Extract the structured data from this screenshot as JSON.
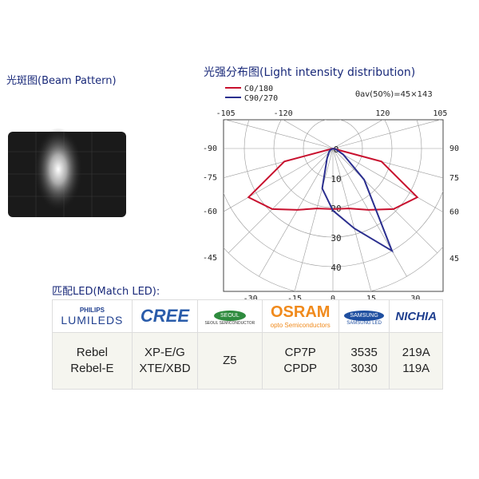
{
  "beam_pattern": {
    "title": "光斑图(Beam Pattern)"
  },
  "chart_data": {
    "type": "polar",
    "title": "光强分布图(Light intensity distribution)",
    "annotation": "θav(50%)=45×143",
    "angle_ticks": [
      -120,
      -105,
      -90,
      -75,
      -60,
      -45,
      -30,
      -15,
      0,
      15,
      30,
      45,
      60,
      75,
      90,
      105,
      120
    ],
    "rlim": [
      0,
      50
    ],
    "rticks": [
      0,
      10,
      20,
      30,
      40
    ],
    "grid": true,
    "legend": "top-left",
    "x": [
      -90,
      -75,
      -60,
      -45,
      -30,
      -15,
      0,
      15,
      30,
      45,
      60,
      75,
      90
    ],
    "series": [
      {
        "name": "C0/180",
        "color": "#c8102e",
        "values": [
          0,
          17,
          33,
          29,
          24,
          21,
          20.5,
          21,
          24,
          29,
          33,
          17,
          0
        ]
      },
      {
        "name": "C90/270",
        "color": "#2b2f8f",
        "values": [
          0,
          0,
          1,
          2,
          4,
          14,
          21,
          28,
          40,
          15,
          4,
          1,
          0
        ]
      }
    ]
  },
  "match_led": {
    "title": "匹配LED(Match LED):",
    "brands": [
      [
        "PHILIPS",
        "LUMILEDS"
      ],
      [
        "CREE"
      ],
      [
        "SEOUL",
        "SEOUL SEMICONDUCTOR"
      ],
      [
        "OSRAM",
        "opto Semiconductors"
      ],
      [
        "SAMSUNG",
        "SAMSUNG LED"
      ],
      [
        "NICHIA"
      ]
    ],
    "models": [
      [
        "Rebel",
        "Rebel-E"
      ],
      [
        "XP-E/G",
        "XTE/XBD"
      ],
      [
        "Z5"
      ],
      [
        "CP7P",
        "CPDP"
      ],
      [
        "3535",
        "3030"
      ],
      [
        "219A",
        "119A"
      ]
    ]
  }
}
